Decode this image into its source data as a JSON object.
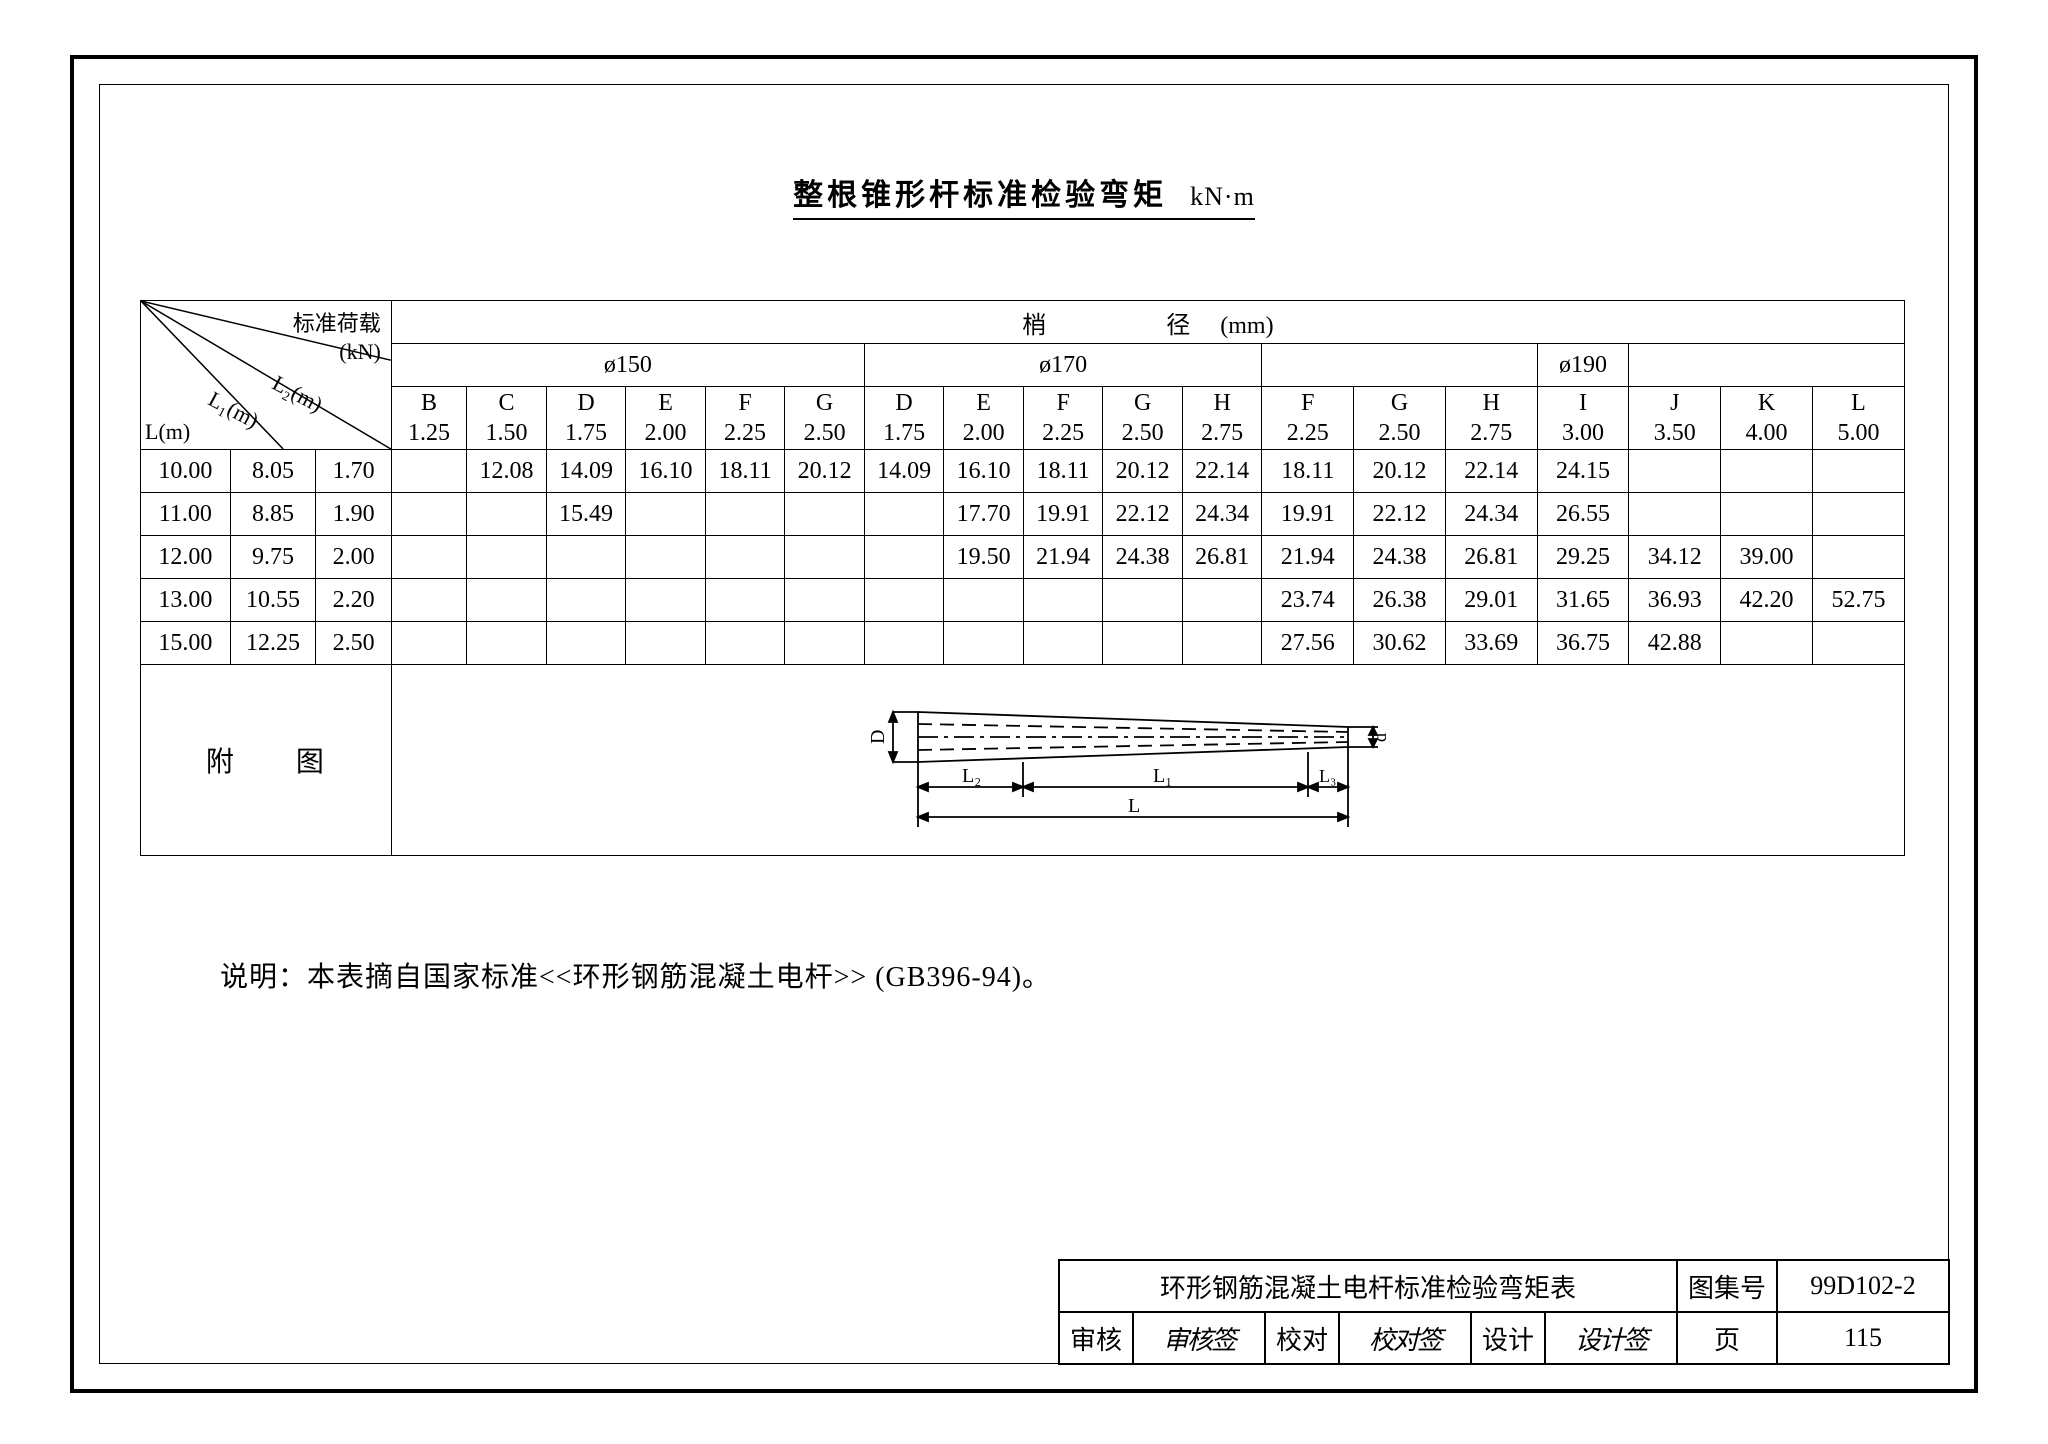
{
  "title_main": "整根锥形杆标准检验弯矩",
  "title_unit": "kN·m",
  "header": {
    "std_load": "标准荷载",
    "std_load_unit": "(kN)",
    "tip_dia": "梢　　径",
    "tip_dia_unit": "(mm)",
    "L": "L(m)",
    "L1": "L₁(m)",
    "L2": "L₂(m)",
    "d150": "ø150",
    "d170": "ø170",
    "d190": "ø190"
  },
  "col_groups": {
    "d150": [
      {
        "t": "B",
        "v": "1.25"
      },
      {
        "t": "C",
        "v": "1.50"
      },
      {
        "t": "D",
        "v": "1.75"
      },
      {
        "t": "E",
        "v": "2.00"
      },
      {
        "t": "F",
        "v": "2.25"
      },
      {
        "t": "G",
        "v": "2.50"
      }
    ],
    "d170": [
      {
        "t": "D",
        "v": "1.75"
      },
      {
        "t": "E",
        "v": "2.00"
      },
      {
        "t": "F",
        "v": "2.25"
      },
      {
        "t": "G",
        "v": "2.50"
      },
      {
        "t": "H",
        "v": "2.75"
      }
    ],
    "un": [
      {
        "t": "F",
        "v": "2.25"
      },
      {
        "t": "G",
        "v": "2.50"
      },
      {
        "t": "H",
        "v": "2.75"
      }
    ],
    "d190": [
      {
        "t": "I",
        "v": "3.00"
      }
    ],
    "tail": [
      {
        "t": "J",
        "v": "3.50"
      },
      {
        "t": "K",
        "v": "4.00"
      },
      {
        "t": "L",
        "v": "5.00"
      }
    ]
  },
  "rows": [
    {
      "L": "10.00",
      "L1": "8.05",
      "L2": "1.70",
      "cells": [
        "",
        "12.08",
        "14.09",
        "16.10",
        "18.11",
        "20.12",
        "14.09",
        "16.10",
        "18.11",
        "20.12",
        "22.14",
        "18.11",
        "20.12",
        "22.14",
        "24.15",
        "",
        "",
        ""
      ]
    },
    {
      "L": "11.00",
      "L1": "8.85",
      "L2": "1.90",
      "cells": [
        "",
        "",
        "15.49",
        "",
        "",
        "",
        "",
        "17.70",
        "19.91",
        "22.12",
        "24.34",
        "19.91",
        "22.12",
        "24.34",
        "26.55",
        "",
        "",
        ""
      ]
    },
    {
      "L": "12.00",
      "L1": "9.75",
      "L2": "2.00",
      "cells": [
        "",
        "",
        "",
        "",
        "",
        "",
        "",
        "19.50",
        "21.94",
        "24.38",
        "26.81",
        "21.94",
        "24.38",
        "26.81",
        "29.25",
        "34.12",
        "39.00",
        ""
      ]
    },
    {
      "L": "13.00",
      "L1": "10.55",
      "L2": "2.20",
      "cells": [
        "",
        "",
        "",
        "",
        "",
        "",
        "",
        "",
        "",
        "",
        "",
        "23.74",
        "26.38",
        "29.01",
        "31.65",
        "36.93",
        "42.20",
        "52.75"
      ]
    },
    {
      "L": "15.00",
      "L1": "12.25",
      "L2": "2.50",
      "cells": [
        "",
        "",
        "",
        "",
        "",
        "",
        "",
        "",
        "",
        "",
        "",
        "27.56",
        "30.62",
        "33.69",
        "36.75",
        "42.88",
        "",
        ""
      ]
    }
  ],
  "attached_label": "附　　图",
  "diagram": {
    "D": "D",
    "d": "d",
    "L": "L",
    "L1": "L₁",
    "L2": "L₂",
    "L3": "L₃"
  },
  "note": "说明：本表摘自国家标准<<环形钢筋混凝土电杆>> (GB396-94)。",
  "titleblock": {
    "name": "环形钢筋混凝土电杆标准检验弯矩表",
    "atlas_lbl": "图集号",
    "atlas_no": "99D102-2",
    "审核": "审核",
    "校对": "校对",
    "设计": "设计",
    "page_lbl": "页",
    "page_no": "115"
  },
  "colors": {
    "fg": "#000000",
    "bg": "#ffffff"
  }
}
